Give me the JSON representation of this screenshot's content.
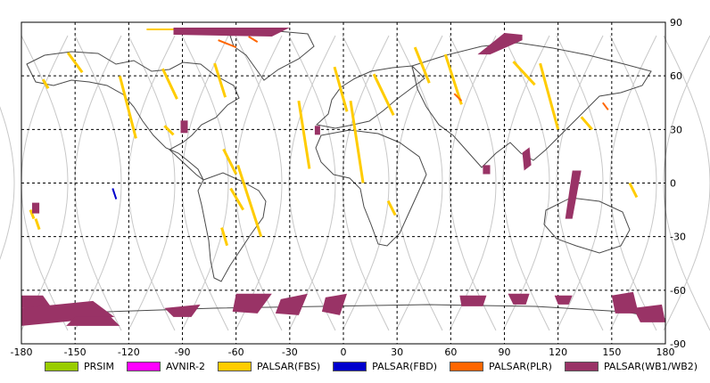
{
  "map": {
    "lon_ticks": [
      "-180",
      "-150",
      "-120",
      "-90",
      "-60",
      "-30",
      "0",
      "30",
      "60",
      "90",
      "120",
      "150",
      "180"
    ],
    "lat_ticks": [
      "90",
      "60",
      "30",
      "0",
      "-30",
      "-60",
      "-90"
    ],
    "lon_range": [
      -180,
      180
    ],
    "lat_range": [
      -90,
      90
    ],
    "grid": "dashed"
  },
  "legend": {
    "items": [
      {
        "label": "PRSIM",
        "color": "#99cc00"
      },
      {
        "label": "AVNIR-2",
        "color": "#ff00ff"
      },
      {
        "label": "PALSAR(FBS)",
        "color": "#ffcc00"
      },
      {
        "label": "PALSAR(FBD)",
        "color": "#0000cc"
      },
      {
        "label": "PALSAR(PLR)",
        "color": "#ff6600"
      },
      {
        "label": "PALSAR(WB1/WB2)",
        "color": "#993366"
      }
    ]
  },
  "colors": {
    "coast": "#4a4a4a",
    "orbit": "#c8c8c8",
    "fbs": "#ffcc00",
    "fbd": "#0000cc",
    "plr": "#ff6600",
    "wb": "#993366"
  }
}
